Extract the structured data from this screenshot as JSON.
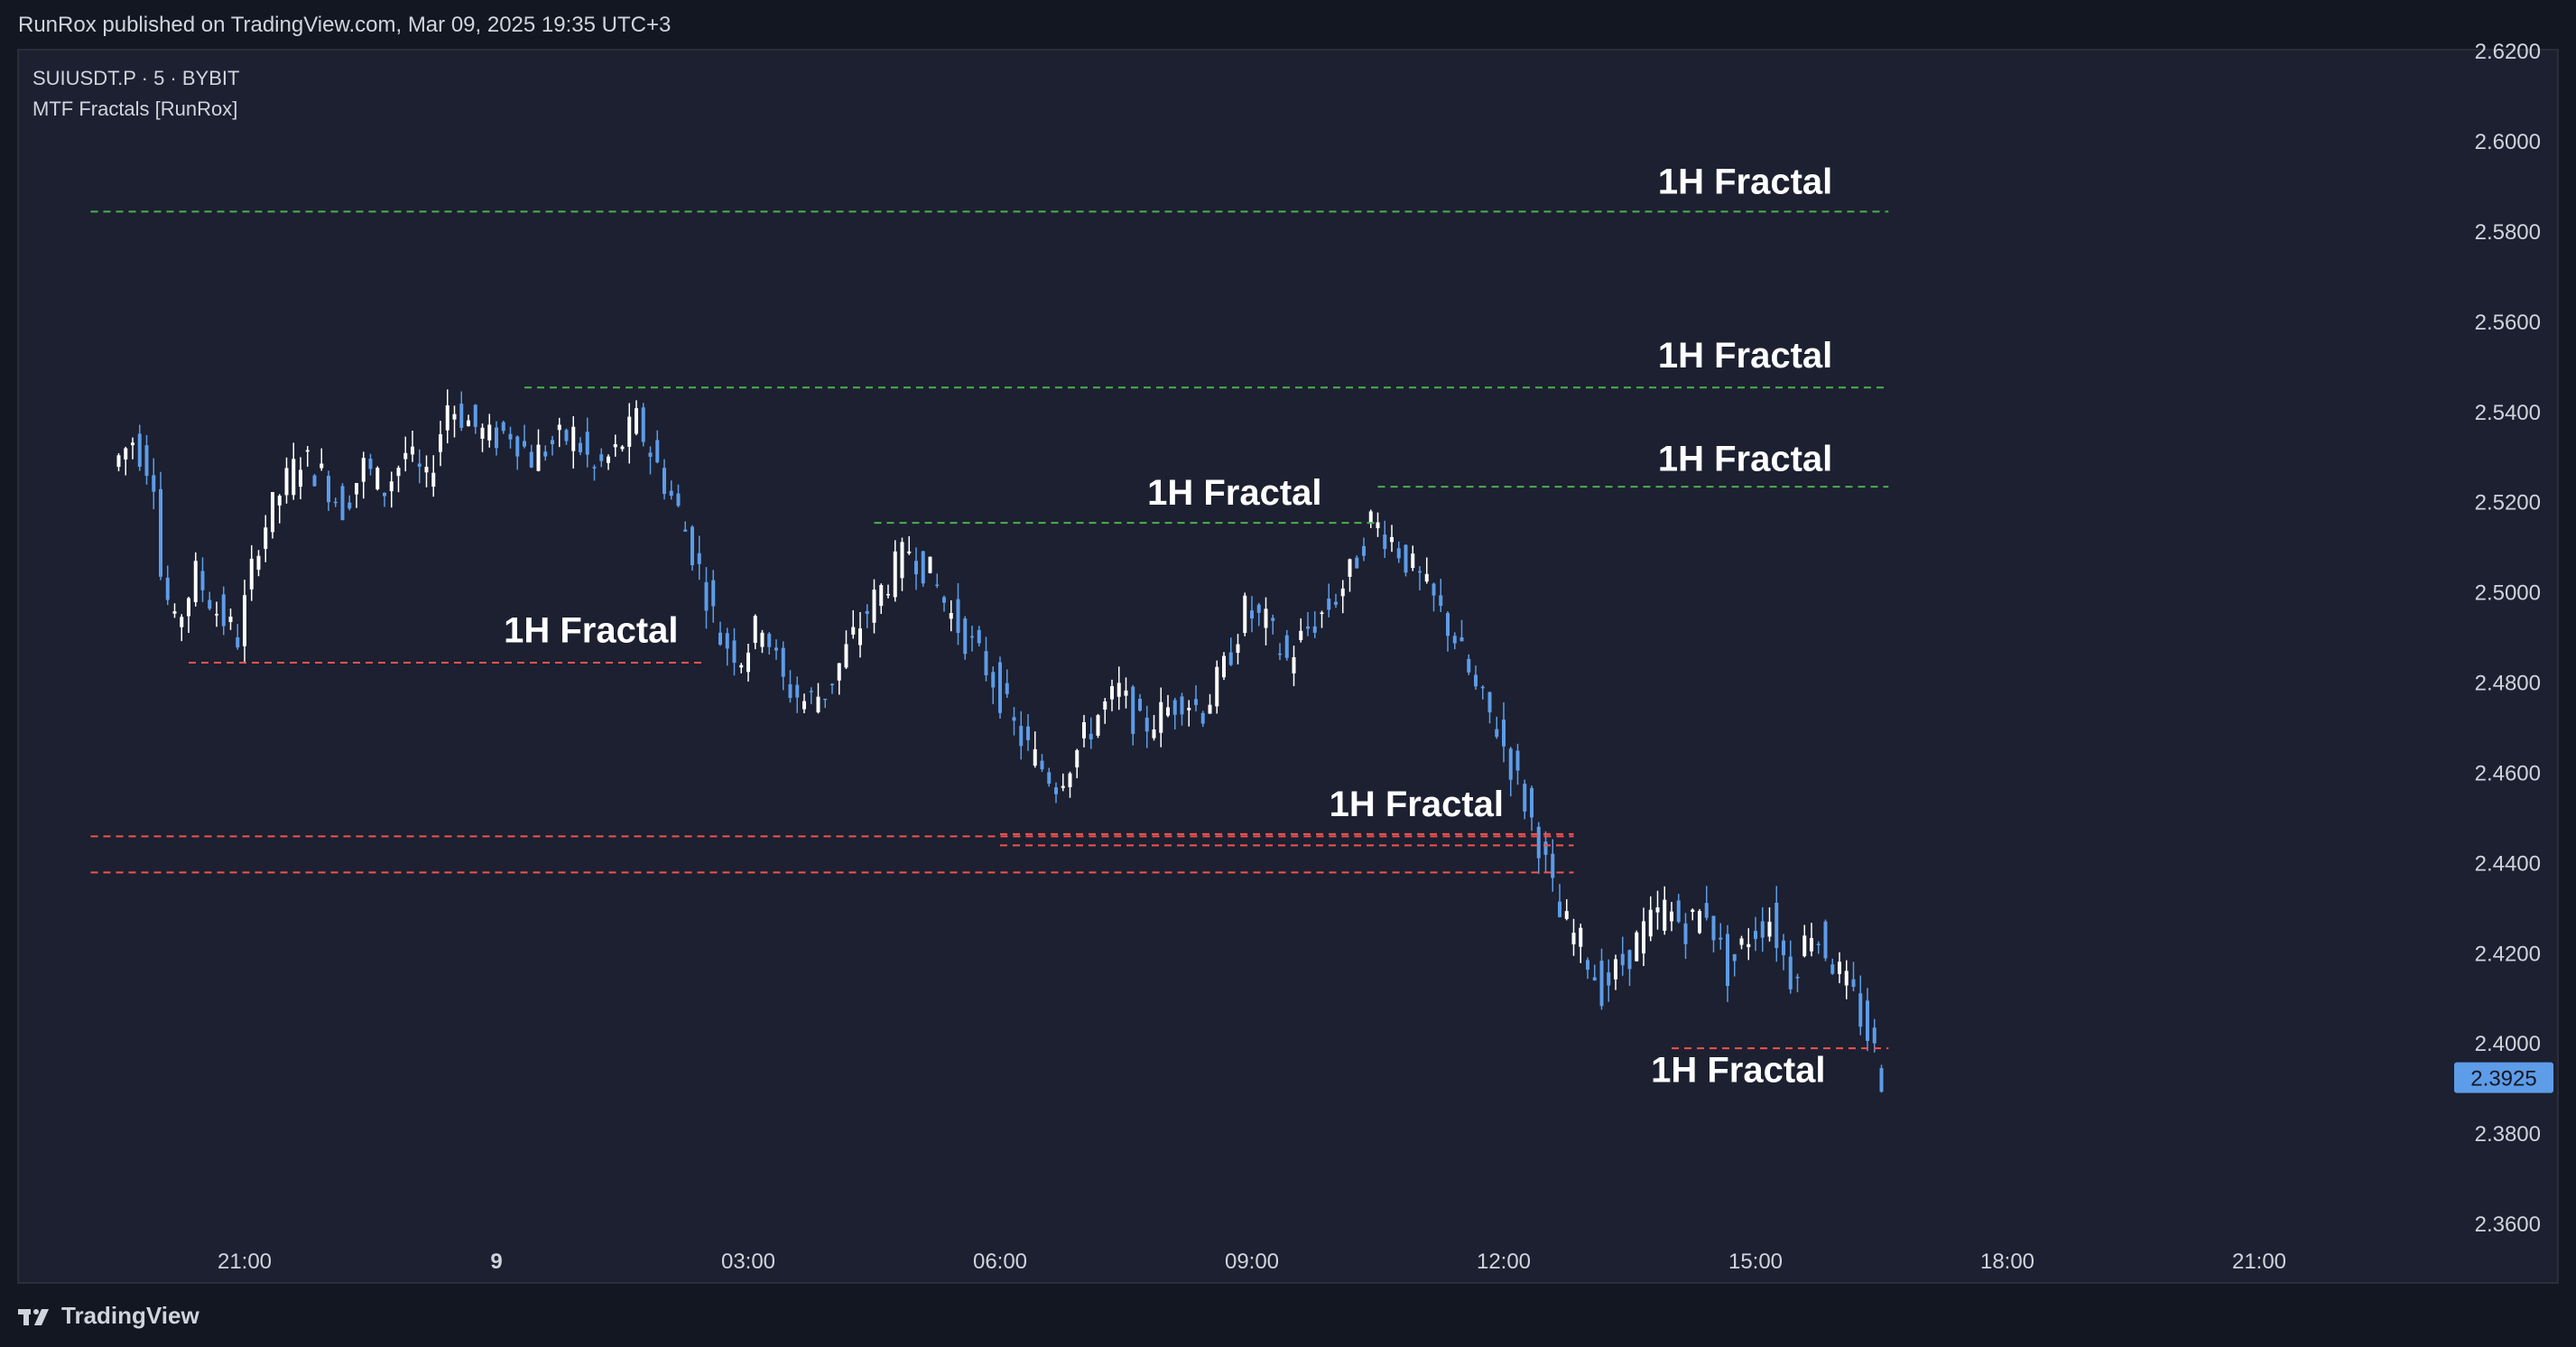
{
  "header": {
    "published_text": "RunRox published on TradingView.com, Mar 09, 2025 19:35 UTC+3"
  },
  "legend": {
    "symbol_line": "SUIUSDT.P · 5 · BYBIT",
    "indicator_line": "MTF Fractals [RunRox]"
  },
  "footer": {
    "brand": "TradingView",
    "logo_icon": "tradingview-logo-icon"
  },
  "colors": {
    "background": "#1c2030",
    "up_candle": "#ffffff",
    "down_candle": "#5d9ce8",
    "bullish_fractal_line": "#4caf50",
    "bearish_fractal_line": "#ef5350",
    "last_price_label_bg": "#5d9ce8",
    "axis_text": "#d1d4dc"
  },
  "chart_data": {
    "type": "candlestick",
    "symbol": "SUIUSDT.P",
    "interval": "5",
    "exchange": "BYBIT",
    "ylim": [
      2.35,
      2.62
    ],
    "y_ticks": [
      "2.6200",
      "2.6000",
      "2.5800",
      "2.5600",
      "2.5400",
      "2.5200",
      "2.5000",
      "2.4800",
      "2.4600",
      "2.4400",
      "2.4200",
      "2.4000",
      "2.3800",
      "2.3600"
    ],
    "x_ticks": [
      "21:00",
      "9",
      "03:00",
      "06:00",
      "09:00",
      "12:00",
      "15:00",
      "18:00",
      "21:00"
    ],
    "last_price": "2.3925",
    "close_path": [
      [
        "19:30",
        2.528
      ],
      [
        "19:45",
        2.534
      ],
      [
        "20:00",
        2.526
      ],
      [
        "20:05",
        2.504
      ],
      [
        "20:15",
        2.492
      ],
      [
        "20:30",
        2.504
      ],
      [
        "20:45",
        2.496
      ],
      [
        "21:00",
        2.49
      ],
      [
        "21:15",
        2.512
      ],
      [
        "21:30",
        2.522
      ],
      [
        "21:45",
        2.53
      ],
      [
        "22:00",
        2.526
      ],
      [
        "22:15",
        2.519
      ],
      [
        "22:30",
        2.528
      ],
      [
        "22:45",
        2.523
      ],
      [
        "23:00",
        2.531
      ],
      [
        "23:15",
        2.524
      ],
      [
        "23:30",
        2.542
      ],
      [
        "23:45",
        2.538
      ],
      [
        "00:00",
        2.534
      ],
      [
        "00:15",
        2.536
      ],
      [
        "00:30",
        2.53
      ],
      [
        "00:45",
        2.533
      ],
      [
        "01:00",
        2.535
      ],
      [
        "01:15",
        2.527
      ],
      [
        "01:30",
        2.531
      ],
      [
        "01:45",
        2.538
      ],
      [
        "02:00",
        2.528
      ],
      [
        "02:15",
        2.518
      ],
      [
        "02:30",
        2.505
      ],
      [
        "02:45",
        2.49
      ],
      [
        "03:00",
        2.486
      ],
      [
        "03:15",
        2.494
      ],
      [
        "03:30",
        2.48
      ],
      [
        "03:45",
        2.476
      ],
      [
        "04:00",
        2.478
      ],
      [
        "04:15",
        2.487
      ],
      [
        "04:30",
        2.496
      ],
      [
        "04:45",
        2.503
      ],
      [
        "05:00",
        2.51
      ],
      [
        "05:15",
        2.504
      ],
      [
        "05:30",
        2.495
      ],
      [
        "05:45",
        2.488
      ],
      [
        "06:00",
        2.481
      ],
      [
        "06:15",
        2.47
      ],
      [
        "06:30",
        2.463
      ],
      [
        "06:45",
        2.458
      ],
      [
        "07:00",
        2.465
      ],
      [
        "07:15",
        2.473
      ],
      [
        "07:30",
        2.478
      ],
      [
        "07:45",
        2.47
      ],
      [
        "08:00",
        2.473
      ],
      [
        "08:15",
        2.477
      ],
      [
        "08:30",
        2.474
      ],
      [
        "08:45",
        2.483
      ],
      [
        "09:00",
        2.496
      ],
      [
        "09:15",
        2.493
      ],
      [
        "09:30",
        2.485
      ],
      [
        "09:45",
        2.492
      ],
      [
        "10:00",
        2.497
      ],
      [
        "10:15",
        2.504
      ],
      [
        "10:30",
        2.516
      ],
      [
        "10:45",
        2.512
      ],
      [
        "11:00",
        2.505
      ],
      [
        "11:15",
        2.498
      ],
      [
        "11:30",
        2.49
      ],
      [
        "11:45",
        2.478
      ],
      [
        "12:00",
        2.47
      ],
      [
        "12:15",
        2.458
      ],
      [
        "12:30",
        2.445
      ],
      [
        "12:45",
        2.428
      ],
      [
        "13:00",
        2.422
      ],
      [
        "13:15",
        2.412
      ],
      [
        "13:30",
        2.418
      ],
      [
        "13:45",
        2.425
      ],
      [
        "14:00",
        2.43
      ],
      [
        "14:15",
        2.426
      ],
      [
        "14:30",
        2.43
      ],
      [
        "14:45",
        2.416
      ],
      [
        "15:00",
        2.424
      ],
      [
        "15:15",
        2.428
      ],
      [
        "15:30",
        2.415
      ],
      [
        "15:45",
        2.426
      ],
      [
        "16:00",
        2.418
      ],
      [
        "16:15",
        2.41
      ],
      [
        "16:30",
        2.398
      ],
      [
        "16:35",
        2.3925
      ]
    ],
    "fractal_levels": [
      {
        "label": "1H Fractal",
        "type": "high",
        "price": 2.5845,
        "start": "19:10",
        "end": "16:35"
      },
      {
        "label": "1H Fractal",
        "type": "high",
        "price": 2.5455,
        "start": "00:20",
        "end": "16:35"
      },
      {
        "label": "1H Fractal",
        "type": "high",
        "price": 2.5235,
        "start": "10:30",
        "end": "16:35"
      },
      {
        "label": "1H Fractal",
        "type": "high",
        "price": 2.5155,
        "start": "04:30",
        "end": "10:30"
      },
      {
        "label": "1H Fractal",
        "type": "low",
        "price": 2.4845,
        "start": "20:20",
        "end": "02:30"
      },
      {
        "label": "1H Fractal",
        "type": "low",
        "price": 2.446,
        "start": "19:10",
        "end": "12:50"
      },
      {
        "label": "1H Fractal",
        "type": "low",
        "price": 2.4465,
        "start": "06:00",
        "end": "12:50"
      },
      {
        "label": "1H Fractal",
        "type": "low",
        "price": 2.444,
        "start": "06:00",
        "end": "12:50"
      },
      {
        "label": "1H Fractal",
        "type": "low",
        "price": 2.438,
        "start": "19:10",
        "end": "12:50"
      },
      {
        "label": "1H Fractal",
        "type": "low",
        "price": 2.399,
        "start": "14:00",
        "end": "16:35"
      }
    ],
    "fractal_annotations": [
      {
        "text": "1H Fractal",
        "time": "15:55",
        "price": 2.5885,
        "anchor": "end"
      },
      {
        "text": "1H Fractal",
        "time": "15:55",
        "price": 2.55,
        "anchor": "end"
      },
      {
        "text": "1H Fractal",
        "time": "15:55",
        "price": 2.527,
        "anchor": "end"
      },
      {
        "text": "1H Fractal",
        "time": "09:50",
        "price": 2.5195,
        "anchor": "end"
      },
      {
        "text": "1H Fractal",
        "time": "02:10",
        "price": 2.489,
        "anchor": "end"
      },
      {
        "text": "1H Fractal",
        "time": "12:00",
        "price": 2.4505,
        "anchor": "end"
      },
      {
        "text": "1H Fractal",
        "time": "15:50",
        "price": 2.3915,
        "anchor": "end"
      }
    ]
  }
}
